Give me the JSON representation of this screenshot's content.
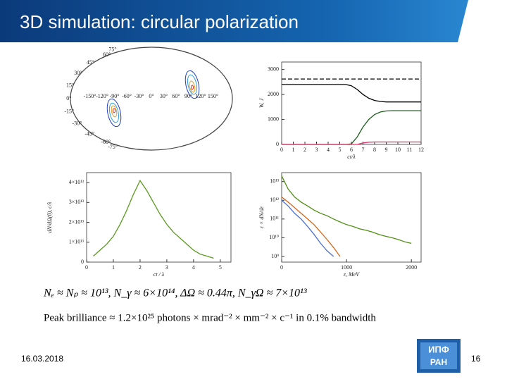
{
  "title": "3D simulation: circular polarization",
  "date": "16.03.2018",
  "page_number": "16",
  "logo": [
    "ИПФ",
    "РАН"
  ],
  "formulas": [
    "Nₑ ≈ Nₚ ≈ 10¹³,  N_γ ≈ 6×10¹⁴,  ΔΩ ≈ 0.44π,  N_γΩ ≈ 7×10¹³",
    "Peak brilliance ≈ 1.2×10²⁵ photons × mrad⁻² × mm⁻² × c⁻¹  in  0.1%  bandwidth"
  ],
  "map": {
    "longitude_labels": [
      "-150°",
      "-120°",
      "-90°",
      "-60°",
      "-30°",
      "0°",
      "30°",
      "60°",
      "90°",
      "120°",
      "150°"
    ],
    "latitude_labels": [
      "75°",
      "60°",
      "45°",
      "30°",
      "15°",
      "0°",
      "-15°",
      "-30°",
      "-45°",
      "-60°",
      "-75°"
    ]
  },
  "chart_data": [
    {
      "type": "line",
      "xlabel": "ct/λ",
      "ylabel": "W, J",
      "x": [
        0,
        0.5,
        1,
        1.5,
        2,
        2.5,
        3,
        3.5,
        4,
        4.5,
        5,
        5.5,
        6,
        6.5,
        7,
        7.5,
        8,
        8.5,
        9,
        9.5,
        10,
        10.5,
        11,
        11.5,
        12
      ],
      "xlim": [
        0,
        12
      ],
      "xticks": [
        0,
        1,
        2,
        3,
        4,
        5,
        6,
        7,
        8,
        9,
        10,
        11,
        12
      ],
      "ylim": [
        0,
        3300
      ],
      "yticks": [
        0,
        1000,
        2000,
        3000
      ],
      "series": [
        {
          "color": "#000000",
          "dashed": true,
          "values": [
            2620,
            2620,
            2620,
            2620,
            2620,
            2620,
            2620,
            2620,
            2620,
            2620,
            2620,
            2620,
            2620,
            2620,
            2620,
            2620,
            2620,
            2620,
            2620,
            2620,
            2620,
            2620,
            2620,
            2620,
            2620
          ]
        },
        {
          "color": "#000000",
          "values": [
            2400,
            2400,
            2400,
            2400,
            2400,
            2400,
            2400,
            2400,
            2400,
            2400,
            2400,
            2400,
            2350,
            2200,
            2000,
            1850,
            1760,
            1720,
            1700,
            1700,
            1700,
            1700,
            1700,
            1700,
            1700
          ]
        },
        {
          "color": "#1a5e1a",
          "values": [
            0,
            0,
            0,
            0,
            0,
            0,
            0,
            0,
            0,
            0,
            0,
            0,
            20,
            300,
            700,
            1000,
            1200,
            1300,
            1340,
            1350,
            1350,
            1350,
            1350,
            1350,
            1350
          ]
        },
        {
          "color": "#e0306a",
          "values": [
            0,
            0,
            0,
            0,
            0,
            0,
            0,
            0,
            0,
            0,
            0,
            0,
            0,
            0,
            60,
            90,
            100,
            100,
            100,
            100,
            100,
            100,
            100,
            100,
            100
          ]
        }
      ]
    },
    {
      "type": "line",
      "xlabel": "ct / λ",
      "ylabel": "dN/dΩ(θ), c/λ",
      "x": [
        0.25,
        0.5,
        0.75,
        1,
        1.25,
        1.5,
        1.75,
        2,
        2.25,
        2.5,
        2.75,
        3,
        3.25,
        3.5,
        3.75,
        4,
        4.25,
        4.5,
        4.75
      ],
      "xlim": [
        0,
        5.4
      ],
      "xticks": [
        0,
        1,
        2,
        3,
        4,
        5
      ],
      "ylim": [
        0,
        45000000000000
      ],
      "yticks": [
        0,
        {
          "value": 10000000000000,
          "label": "1×10¹³"
        },
        {
          "value": 20000000000000,
          "label": "2×10¹³"
        },
        {
          "value": 30000000000000,
          "label": "3×10¹³"
        },
        {
          "value": 40000000000000,
          "label": "4×10¹³"
        }
      ],
      "series": [
        {
          "color": "#5a9a1e",
          "values": [
            3000000000000,
            6000000000000,
            9000000000000,
            13000000000000,
            19000000000000,
            26000000000000,
            34000000000000,
            41000000000000,
            36000000000000,
            30000000000000,
            24000000000000,
            19000000000000,
            15000000000000,
            12000000000000,
            9000000000000,
            6000000000000,
            4000000000000,
            3000000000000,
            2000000000000
          ]
        }
      ]
    },
    {
      "type": "line",
      "log_y": true,
      "xlabel": "ε, MeV",
      "ylabel": "ε × dN/dε",
      "x": [
        0,
        100,
        200,
        300,
        400,
        500,
        600,
        700,
        800,
        900,
        1000,
        1100,
        1200,
        1300,
        1400,
        1500,
        1600,
        1700,
        1800,
        1900,
        2000
      ],
      "xlim": [
        0,
        2150
      ],
      "xticks": [
        0,
        1000,
        2000
      ],
      "ylim": [
        500000000,
        30000000000000
      ],
      "yticks": [
        {
          "value": 1000000000,
          "label": "10⁹"
        },
        {
          "value": 10000000000,
          "label": "10¹⁰"
        },
        {
          "value": 100000000000,
          "label": "10¹¹"
        },
        {
          "value": 1000000000000,
          "label": "10¹²"
        },
        {
          "value": 10000000000000,
          "label": "10¹³"
        }
      ],
      "series": [
        {
          "color": "#4f8f12",
          "values": [
            20000000000000,
            4000000000000,
            1500000000000,
            800000000000,
            500000000000,
            300000000000,
            200000000000,
            150000000000,
            100000000000,
            70000000000,
            50000000000,
            40000000000,
            30000000000,
            25000000000,
            20000000000,
            15000000000,
            12000000000,
            10000000000,
            8000000000,
            6000000000,
            5000000000
          ]
        },
        {
          "color": "#d4661a",
          "values": [
            1500000000000,
            800000000000,
            400000000000,
            200000000000,
            100000000000,
            50000000000,
            20000000000,
            8000000000,
            3000000000,
            1000000000,
            null,
            null,
            null,
            null,
            null,
            null,
            null,
            null,
            null,
            null,
            null
          ]
        },
        {
          "color": "#4a6fd0",
          "values": [
            1000000000000,
            500000000000,
            200000000000,
            100000000000,
            40000000000,
            15000000000,
            5000000000,
            2000000000,
            1000000000,
            null,
            null,
            null,
            null,
            null,
            null,
            null,
            null,
            null,
            null,
            null,
            null
          ]
        }
      ]
    }
  ]
}
